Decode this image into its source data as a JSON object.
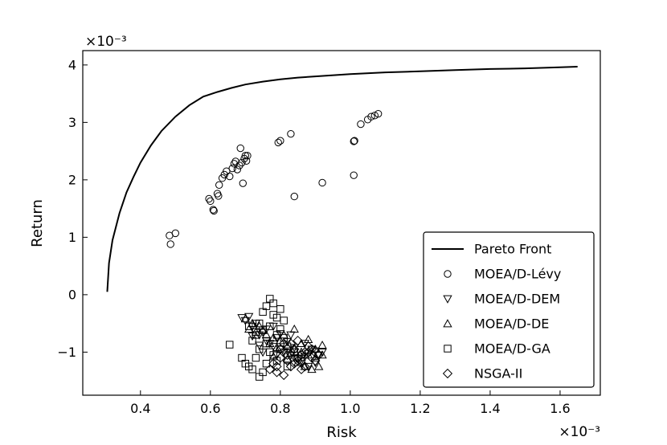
{
  "chart_data": {
    "type": "scatter",
    "xlabel": "Risk",
    "ylabel": "Return",
    "x_multiplier": "×10⁻³",
    "y_multiplier": "×10⁻³",
    "xlim": [
      0.235,
      1.715
    ],
    "ylim": [
      -1.75,
      4.25
    ],
    "x_ticks": [
      0.4,
      0.6,
      0.8,
      1.0,
      1.2,
      1.4,
      1.6
    ],
    "x_tick_labels": [
      "0.4",
      "0.6",
      "0.8",
      "1.0",
      "1.2",
      "1.4",
      "1.6"
    ],
    "y_ticks": [
      -1,
      0,
      1,
      2,
      3,
      4
    ],
    "y_tick_labels": [
      "−1",
      "0",
      "1",
      "2",
      "3",
      "4"
    ],
    "grid": false,
    "legend_position": "bottom-right",
    "series": [
      {
        "name": "Pareto Front",
        "marker": "line",
        "x": [
          0.305,
          0.31,
          0.32,
          0.34,
          0.36,
          0.38,
          0.4,
          0.43,
          0.46,
          0.5,
          0.54,
          0.58,
          0.62,
          0.66,
          0.7,
          0.75,
          0.8,
          0.85,
          0.9,
          1.0,
          1.1,
          1.2,
          1.3,
          1.4,
          1.5,
          1.6,
          1.65
        ],
        "y": [
          0.05,
          0.55,
          0.95,
          1.42,
          1.78,
          2.05,
          2.3,
          2.6,
          2.85,
          3.1,
          3.3,
          3.45,
          3.53,
          3.6,
          3.66,
          3.71,
          3.75,
          3.78,
          3.8,
          3.84,
          3.87,
          3.89,
          3.91,
          3.93,
          3.94,
          3.96,
          3.97
        ]
      },
      {
        "name": "MOEA/D-Lévy",
        "marker": "circle",
        "x": [
          0.483,
          0.486,
          0.5,
          0.596,
          0.6,
          0.608,
          0.61,
          0.62,
          0.623,
          0.625,
          0.634,
          0.64,
          0.646,
          0.655,
          0.663,
          0.668,
          0.672,
          0.677,
          0.683,
          0.686,
          0.69,
          0.693,
          0.697,
          0.7,
          0.703,
          0.706,
          0.794,
          0.8,
          0.83,
          0.84,
          0.92,
          1.01,
          1.01,
          1.012,
          1.03,
          1.05,
          1.06,
          1.07,
          1.08
        ],
        "y": [
          1.03,
          0.88,
          1.07,
          1.67,
          1.63,
          1.48,
          1.46,
          1.76,
          1.72,
          1.91,
          2.03,
          2.09,
          2.15,
          2.06,
          2.2,
          2.28,
          2.32,
          2.18,
          2.25,
          2.55,
          2.3,
          1.94,
          2.37,
          2.42,
          2.33,
          2.42,
          2.65,
          2.68,
          2.8,
          1.71,
          1.95,
          2.08,
          2.67,
          2.68,
          2.97,
          3.05,
          3.1,
          3.12,
          3.15
        ]
      },
      {
        "name": "MOEA/D-DEM",
        "marker": "triangle-down",
        "x": [
          0.69,
          0.7,
          0.71,
          0.72,
          0.73,
          0.74,
          0.75,
          0.76,
          0.77,
          0.78,
          0.79,
          0.8,
          0.81,
          0.82,
          0.83,
          0.84,
          0.85,
          0.86,
          0.87,
          0.88,
          0.89,
          0.9,
          0.91,
          0.92,
          0.72,
          0.74,
          0.76,
          0.78,
          0.8,
          0.82,
          0.84,
          0.86,
          0.88,
          0.9,
          0.75,
          0.79,
          0.83,
          0.87
        ],
        "y": [
          -0.4,
          -0.45,
          -0.38,
          -0.55,
          -0.5,
          -0.7,
          -0.65,
          -0.8,
          -0.85,
          -0.9,
          -0.75,
          -0.95,
          -1.0,
          -0.98,
          -1.05,
          -1.1,
          -1.12,
          -1.15,
          -1.08,
          -1.02,
          -0.95,
          -0.98,
          -1.05,
          -1.0,
          -0.72,
          -0.88,
          -0.6,
          -0.55,
          -0.68,
          -0.82,
          -0.92,
          -1.2,
          -1.25,
          -1.18,
          -1.0,
          -1.05,
          -0.7,
          -0.85
        ]
      },
      {
        "name": "MOEA/D-DE",
        "marker": "triangle-up",
        "x": [
          0.7,
          0.72,
          0.74,
          0.76,
          0.78,
          0.8,
          0.82,
          0.84,
          0.86,
          0.88,
          0.9,
          0.92,
          0.71,
          0.73,
          0.75,
          0.77,
          0.79,
          0.81,
          0.83,
          0.85,
          0.87,
          0.89,
          0.91,
          0.92,
          0.86,
          0.88,
          0.9,
          0.78,
          0.82,
          0.84
        ],
        "y": [
          -0.42,
          -0.5,
          -0.55,
          -0.7,
          -0.75,
          -0.8,
          -0.9,
          -0.95,
          -1.0,
          -1.05,
          -1.1,
          -0.88,
          -0.6,
          -0.65,
          -0.62,
          -0.85,
          -0.92,
          -0.7,
          -1.02,
          -1.18,
          -1.25,
          -1.3,
          -1.25,
          -1.05,
          -0.85,
          -0.78,
          -0.95,
          -1.08,
          -1.12,
          -0.6
        ]
      },
      {
        "name": "MOEA/D-GA",
        "marker": "square",
        "x": [
          0.655,
          0.69,
          0.7,
          0.71,
          0.72,
          0.73,
          0.74,
          0.75,
          0.76,
          0.77,
          0.78,
          0.79,
          0.8,
          0.81,
          0.82,
          0.74,
          0.75,
          0.76,
          0.77,
          0.72,
          0.73,
          0.74,
          0.75,
          0.76,
          0.77,
          0.78,
          0.79,
          0.8,
          0.81,
          0.78,
          0.79,
          0.8,
          0.82,
          0.84,
          0.71,
          0.73
        ],
        "y": [
          -0.87,
          -1.1,
          -1.2,
          -1.25,
          -1.3,
          -1.1,
          -0.5,
          -0.3,
          -0.2,
          -0.07,
          -0.15,
          -0.4,
          -0.6,
          -0.75,
          -0.9,
          -1.43,
          -1.35,
          -1.2,
          -1.0,
          -0.8,
          -0.7,
          -0.95,
          -0.62,
          -0.85,
          -0.55,
          -1.05,
          -1.15,
          -0.25,
          -0.45,
          -0.35,
          -0.7,
          -0.95,
          -1.25,
          -1.0,
          -0.55,
          -0.65
        ]
      },
      {
        "name": "NSGA-II",
        "marker": "diamond",
        "x": [
          0.77,
          0.79,
          0.81,
          0.83,
          0.85,
          0.87,
          0.89,
          0.91,
          0.78,
          0.8,
          0.82,
          0.84,
          0.86,
          0.88,
          0.9,
          0.83,
          0.85,
          0.87,
          0.89,
          0.8,
          0.82,
          0.84,
          0.86,
          0.88,
          0.79,
          0.81,
          0.85
        ],
        "y": [
          -1.3,
          -1.35,
          -1.4,
          -1.25,
          -1.1,
          -1.0,
          -0.95,
          -1.05,
          -1.2,
          -1.1,
          -1.15,
          -1.2,
          -1.05,
          -0.9,
          -1.15,
          -0.85,
          -0.8,
          -1.25,
          -1.1,
          -0.95,
          -1.05,
          -0.95,
          -1.3,
          -1.0,
          -1.25,
          -0.85,
          -1.15
        ]
      }
    ]
  }
}
